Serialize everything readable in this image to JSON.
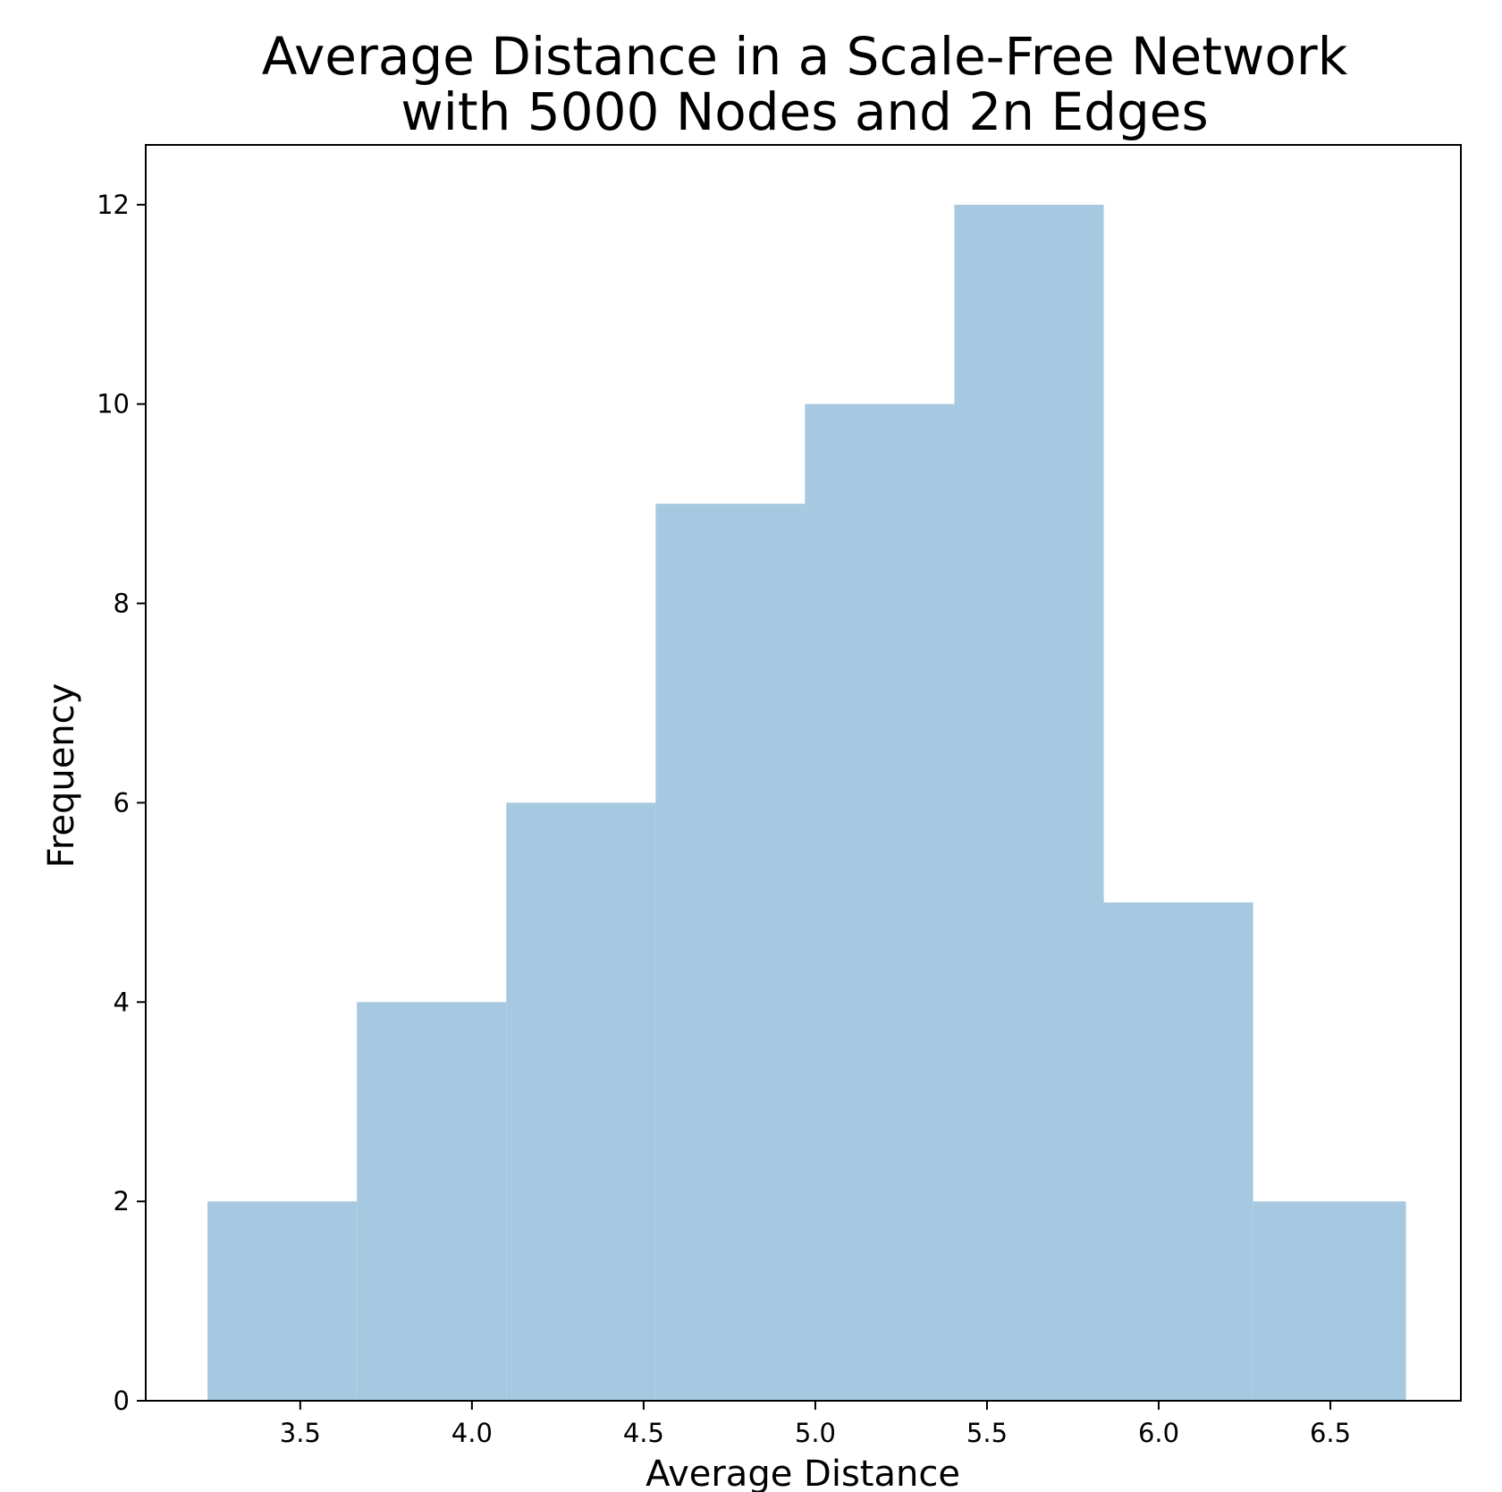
{
  "chart_data": {
    "type": "bar",
    "title_lines": [
      "Average Distance in a Scale-Free Network",
      "with 5000 Nodes and 2n Edges"
    ],
    "xlabel": "Average Distance",
    "ylabel": "Frequency",
    "xlim": [
      3.05,
      6.88
    ],
    "ylim": [
      0,
      12.6
    ],
    "xticks": [
      3.5,
      4.0,
      4.5,
      5.0,
      5.5,
      6.0,
      6.5
    ],
    "xtick_labels": [
      "3.5",
      "4.0",
      "4.5",
      "5.0",
      "5.5",
      "6.0",
      "6.5"
    ],
    "yticks": [
      0,
      2,
      4,
      6,
      8,
      10,
      12
    ],
    "ytick_labels": [
      "0",
      "2",
      "4",
      "6",
      "8",
      "10",
      "12"
    ],
    "bin_edges": [
      3.23,
      3.665,
      4.1,
      4.535,
      4.97,
      5.405,
      5.84,
      6.275,
      6.72
    ],
    "values": [
      2,
      4,
      6,
      9,
      10,
      12,
      5,
      2
    ],
    "bar_color": "#a6c8e0",
    "grid": false
  }
}
